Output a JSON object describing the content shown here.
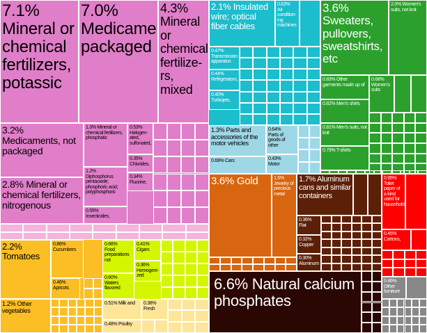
{
  "chart_data": {
    "type": "treemap",
    "unit": "%",
    "groups": [
      {
        "id": "chemicals",
        "color": "#e07ec9",
        "secondary_color": "#f3b5dc"
      },
      {
        "id": "vegetables",
        "color": "#fbbf25"
      },
      {
        "id": "foodstuffs",
        "color": "#d4f600"
      },
      {
        "id": "animal",
        "color": "#fde59a"
      },
      {
        "id": "machines",
        "color": "#1cbdcd"
      },
      {
        "id": "transportation",
        "color": "#9ed8e6"
      },
      {
        "id": "textiles",
        "color": "#2ca02c"
      },
      {
        "id": "precious",
        "color": "#d8650f"
      },
      {
        "id": "metals",
        "color": "#5c2008"
      },
      {
        "id": "minerals",
        "color": "#2b0703"
      },
      {
        "id": "paper",
        "color": "#ff0000"
      },
      {
        "id": "misc",
        "color": "#888888"
      }
    ],
    "items": [
      {
        "pct": "7.1%",
        "label": "Mineral or chemical fertilizers, potassic",
        "value": 7.1,
        "group": "chemicals"
      },
      {
        "pct": "7.0%",
        "label": "Medicaments, packaged",
        "value": 7.0,
        "group": "chemicals"
      },
      {
        "pct": "4.3%",
        "label": "Mineral or chemical fertilize-rs, mixed",
        "value": 4.3,
        "group": "chemicals"
      },
      {
        "pct": "3.2%",
        "label": "Medicaments, not packaged",
        "value": 3.2,
        "group": "chemicals"
      },
      {
        "pct": "2.8%",
        "label": "Mineral or chemical fertilizers, nitrogenous",
        "value": 2.8,
        "group": "chemicals"
      },
      {
        "pct": "1.3%",
        "label": "Mineral or chemical fertilizers, phosphatic",
        "value": 1.3,
        "group": "chemicals"
      },
      {
        "pct": "1.2%",
        "label": "Diphosphorus pentaoxide; phosphoric acid; polyphosphoric",
        "value": 1.2,
        "group": "chemicals"
      },
      {
        "pct": "0.55%",
        "label": "Insecticides,",
        "value": 0.55,
        "group": "chemicals"
      },
      {
        "pct": "0.53%",
        "label": "Halogen-ated, sulfonated,",
        "value": 0.53,
        "group": "chemicals"
      },
      {
        "pct": "0.35%",
        "label": "Chlorides,",
        "value": 0.35,
        "group": "chemicals"
      },
      {
        "pct": "0.34%",
        "label": "Fluorine,",
        "value": 0.34,
        "group": "chemicals"
      },
      {
        "pct": "2.2%",
        "label": "Tomatoes",
        "value": 2.2,
        "group": "vegetables"
      },
      {
        "pct": "1.2%",
        "label": "Other vegetables",
        "value": 1.2,
        "group": "vegetables"
      },
      {
        "pct": "0.86%",
        "label": "Cucumbers",
        "value": 0.86,
        "group": "vegetables"
      },
      {
        "pct": "0.46%",
        "label": "Apricots",
        "value": 0.46,
        "group": "vegetables"
      },
      {
        "pct": "0.66%",
        "label": "Food preparations not",
        "value": 0.66,
        "group": "foodstuffs"
      },
      {
        "pct": "0.60%",
        "label": "Waters flavored",
        "value": 0.6,
        "group": "foodstuffs"
      },
      {
        "pct": "0.41%",
        "label": "Cigars",
        "value": 0.41,
        "group": "foodstuffs"
      },
      {
        "pct": "0.36%",
        "label": "Homogeni-zed",
        "value": 0.36,
        "group": "foodstuffs"
      },
      {
        "pct": "0.51%",
        "label": "Milk and",
        "value": 0.51,
        "group": "animal"
      },
      {
        "pct": "0.48%",
        "label": "Poultry",
        "value": 0.48,
        "group": "animal"
      },
      {
        "pct": "0.38%",
        "label": "Fresh",
        "value": 0.38,
        "group": "animal"
      },
      {
        "pct": "2.1%",
        "label": "Insulated wire; optical fiber cables",
        "value": 2.1,
        "group": "machines"
      },
      {
        "pct": "0.63%",
        "label": "Air condition-ing machines",
        "value": 0.63,
        "group": "machines"
      },
      {
        "pct": "0.47%",
        "label": "Transmission apparatus",
        "value": 0.47,
        "group": "machines"
      },
      {
        "pct": "0.44%",
        "label": "Refrigerators,",
        "value": 0.44,
        "group": "machines"
      },
      {
        "pct": "0.40%",
        "label": "Turbojets,",
        "value": 0.4,
        "group": "machines"
      },
      {
        "pct": "1.3%",
        "label": "Parts and accessories of the motor vehicles",
        "value": 1.3,
        "group": "transportation"
      },
      {
        "pct": "0.69%",
        "label": "Cars",
        "value": 0.69,
        "group": "transportation"
      },
      {
        "pct": "0.64%",
        "label": "Parts of goods of other",
        "value": 0.64,
        "group": "transportation"
      },
      {
        "pct": "0.43%",
        "label": "Motor",
        "value": 0.43,
        "group": "transportation"
      },
      {
        "pct": "3.6%",
        "label": "Sweaters, pullovers, sweatshirts, etc",
        "value": 3.6,
        "group": "textiles"
      },
      {
        "pct": "2.0%",
        "label": "Women's suits, not knit",
        "value": 2.0,
        "group": "textiles"
      },
      {
        "pct": "0.83%",
        "label": "Other garments made up of",
        "value": 0.83,
        "group": "textiles"
      },
      {
        "pct": "0.82%",
        "label": "Men's shirts",
        "value": 0.82,
        "group": "textiles"
      },
      {
        "pct": "0.81%",
        "label": "Men's suits, not knit",
        "value": 0.81,
        "group": "textiles"
      },
      {
        "pct": "0.79%",
        "label": "T-shirts",
        "value": 0.79,
        "group": "textiles"
      },
      {
        "pct": "0.68%",
        "label": "Women's suits",
        "value": 0.68,
        "group": "textiles"
      },
      {
        "pct": "3.6%",
        "label": "Gold",
        "value": 3.6,
        "group": "precious"
      },
      {
        "pct": "1.5%",
        "label": "Jewelry of precious metal",
        "value": 1.5,
        "group": "precious"
      },
      {
        "pct": "1.7%",
        "label": "Aluminum cans and similar containers",
        "value": 1.7,
        "group": "metals"
      },
      {
        "pct": "0.36%",
        "label": "Flat",
        "value": 0.36,
        "group": "metals"
      },
      {
        "pct": "0.32%",
        "label": "Copper",
        "value": 0.32,
        "group": "metals"
      },
      {
        "pct": "0.30%",
        "label": "Aluminum",
        "value": 0.3,
        "group": "metals"
      },
      {
        "pct": "6.6%",
        "label": "Natural calcium phosphates",
        "value": 6.6,
        "group": "minerals"
      },
      {
        "pct": "0.95%",
        "label": "Toilet paper of a kind used for household",
        "value": 0.95,
        "group": "paper"
      },
      {
        "pct": "0.45%",
        "label": "Cartons,",
        "value": 0.45,
        "group": "paper"
      },
      {
        "pct": "0.46%",
        "label": "Other furniture",
        "value": 0.46,
        "group": "misc"
      }
    ]
  }
}
